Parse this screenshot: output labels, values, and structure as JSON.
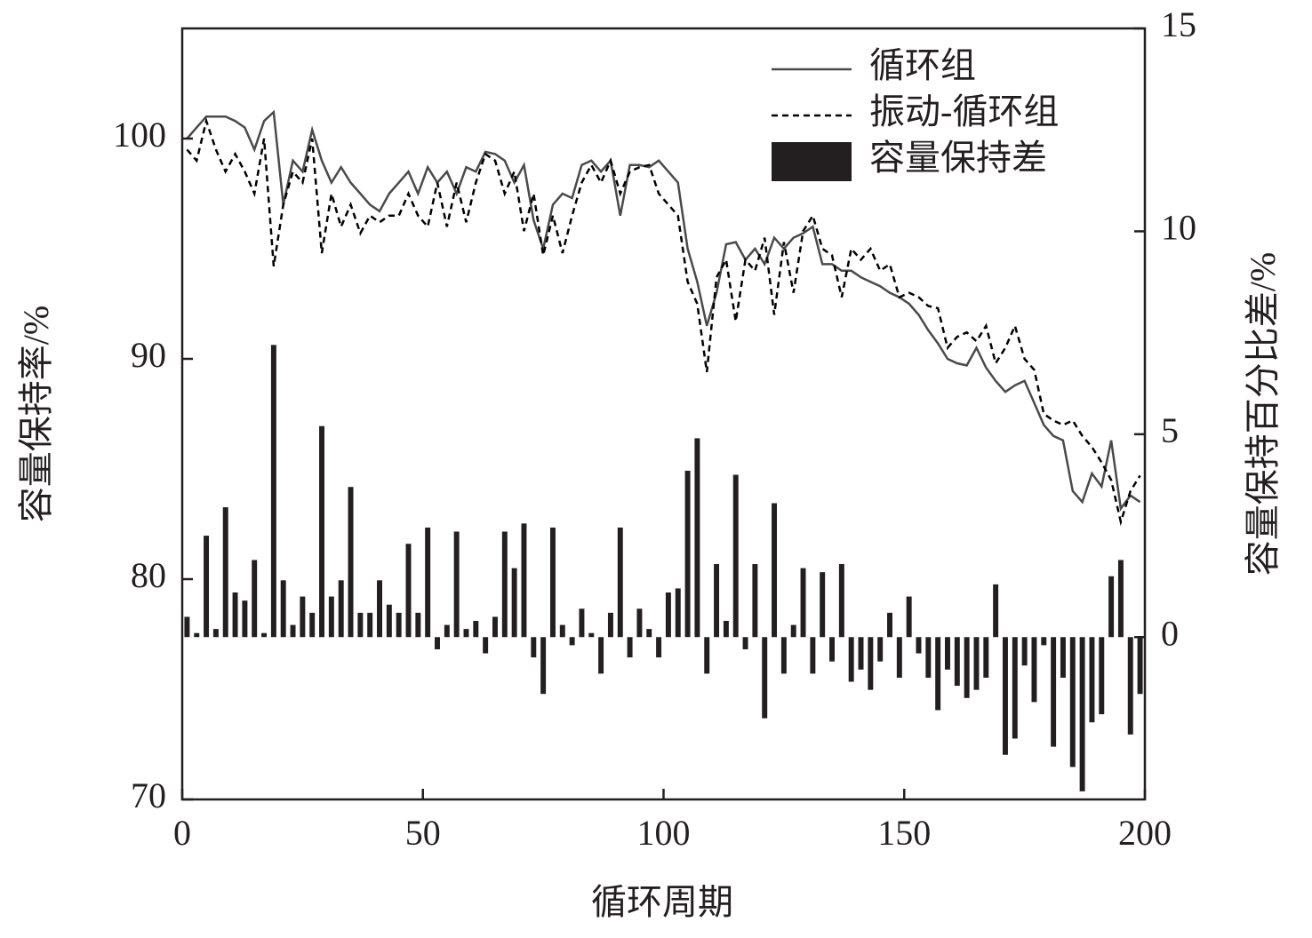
{
  "chart_data": {
    "type": "line",
    "xlabel": "循环周期",
    "ylabel": "容量保持率/%",
    "y2label": "容量保持百分比差/%",
    "xlim": [
      0,
      200
    ],
    "xticks": [
      0,
      50,
      100,
      150,
      200
    ],
    "ylim": [
      70,
      105
    ],
    "yticks": [
      70,
      80,
      90,
      100
    ],
    "y2lim": [
      -4,
      15
    ],
    "y2ticks": [
      0,
      5,
      10,
      15
    ],
    "legend": "upper right",
    "x": [
      1,
      3,
      5,
      7,
      9,
      11,
      13,
      15,
      17,
      19,
      21,
      23,
      25,
      27,
      29,
      31,
      33,
      35,
      37,
      39,
      41,
      43,
      45,
      47,
      49,
      51,
      53,
      55,
      57,
      59,
      61,
      63,
      65,
      67,
      69,
      71,
      73,
      75,
      77,
      79,
      81,
      83,
      85,
      87,
      89,
      91,
      93,
      95,
      97,
      99,
      101,
      103,
      105,
      107,
      109,
      111,
      113,
      115,
      117,
      119,
      121,
      123,
      125,
      127,
      129,
      131,
      133,
      135,
      137,
      139,
      141,
      143,
      145,
      147,
      149,
      151,
      153,
      155,
      157,
      159,
      161,
      163,
      165,
      167,
      169,
      171,
      173,
      175,
      177,
      179,
      181,
      183,
      185,
      187,
      189,
      191,
      193,
      195,
      197,
      199
    ],
    "series": [
      {
        "name": "循环组",
        "type": "line",
        "line_style": "solid",
        "color": "#4a4a4a",
        "values": [
          100,
          100.5,
          101,
          101,
          101,
          100.8,
          100.5,
          99.5,
          100.8,
          101.2,
          97,
          99,
          98.5,
          100.4,
          99,
          98,
          98.7,
          98,
          97.5,
          97,
          96.7,
          97.5,
          98,
          98.5,
          97.5,
          98.7,
          98,
          98.5,
          97.5,
          98.7,
          98.5,
          99.4,
          99.3,
          99,
          98,
          98.8,
          96.3,
          95,
          97,
          97.5,
          97.3,
          98.8,
          99,
          98.5,
          99,
          96.5,
          98.8,
          98.8,
          98.7,
          99,
          98.5,
          98,
          95,
          93.5,
          91.5,
          93,
          95.2,
          95.3,
          94.5,
          95,
          94.3,
          95.5,
          95,
          95.5,
          95.7,
          96,
          94.3,
          94.3,
          94,
          94,
          93.7,
          93.5,
          93.3,
          93,
          92.8,
          92.5,
          92,
          91.3,
          90.7,
          90,
          89.8,
          89.7,
          90.5,
          89.6,
          89,
          88.5,
          88.8,
          89,
          88,
          87,
          86.5,
          86.3,
          84,
          83.5,
          84.8,
          84.2,
          86.3,
          83.2,
          83.8,
          83.5
        ]
      },
      {
        "name": "振动-循环组",
        "type": "line",
        "line_style": "dashed",
        "color": "#000000",
        "values": [
          99.5,
          99,
          100.8,
          99.5,
          98.5,
          99.3,
          98.5,
          97.5,
          100,
          94.2,
          97,
          98.5,
          98,
          100,
          94.8,
          97.5,
          96,
          97,
          95.7,
          96.5,
          96.2,
          96.5,
          96.5,
          97.5,
          96.5,
          96,
          98,
          96,
          98,
          96.2,
          98,
          99.3,
          99,
          97.5,
          98.5,
          95.8,
          97.5,
          94.7,
          96.5,
          94.8,
          96.5,
          98,
          98.8,
          98,
          99,
          97.5,
          98.5,
          98.7,
          98.8,
          97.5,
          97,
          96.5,
          93.5,
          92.5,
          89.4,
          93.7,
          94.5,
          91.7,
          94.5,
          94,
          95.5,
          92,
          95.3,
          93,
          95.8,
          96.5,
          95,
          94.7,
          92.8,
          95,
          94.5,
          95,
          94,
          94.3,
          92.8,
          93,
          92.8,
          92.4,
          92.3,
          90.5,
          91,
          91.2,
          90.8,
          91.5,
          89.8,
          90.5,
          91.5,
          90,
          89.5,
          87.5,
          87.2,
          87,
          87.2,
          86.5,
          86,
          85.3,
          84.5,
          82.6,
          84,
          84.7
        ]
      },
      {
        "name": "容量保持差",
        "type": "bar",
        "axis": "y2",
        "color": "#231f20",
        "values": [
          0.5,
          0.1,
          2.5,
          0.2,
          3.2,
          1.1,
          0.9,
          1.9,
          0.1,
          7.2,
          1.4,
          0.3,
          1.0,
          0.6,
          5.2,
          1.0,
          1.4,
          3.7,
          0.6,
          0.6,
          1.4,
          0.8,
          0.6,
          2.3,
          0.6,
          2.7,
          -0.3,
          0.3,
          2.6,
          0.2,
          0.4,
          -0.4,
          0.5,
          2.6,
          1.7,
          2.8,
          -0.5,
          -1.4,
          2.7,
          0.3,
          -0.2,
          0.7,
          0.1,
          -0.9,
          0.6,
          2.7,
          -0.5,
          0.7,
          0.2,
          -0.5,
          1.1,
          1.2,
          4.1,
          4.9,
          -0.9,
          1.8,
          0.4,
          4.0,
          -0.3,
          1.8,
          -2.0,
          3.3,
          -0.9,
          0.3,
          1.7,
          -0.9,
          1.6,
          -0.6,
          1.8,
          -1.1,
          -0.8,
          -1.3,
          -0.6,
          0.6,
          -1.0,
          1.0,
          -0.4,
          -1.0,
          -1.8,
          -0.8,
          -1.2,
          -1.5,
          -1.3,
          -1.0,
          1.3,
          -2.9,
          -2.5,
          -0.7,
          -1.6,
          -0.2,
          -2.7,
          -1.0,
          -3.2,
          -3.8,
          -2.1,
          -1.9,
          1.5,
          1.9,
          -2.4,
          -1.4
        ]
      }
    ]
  }
}
